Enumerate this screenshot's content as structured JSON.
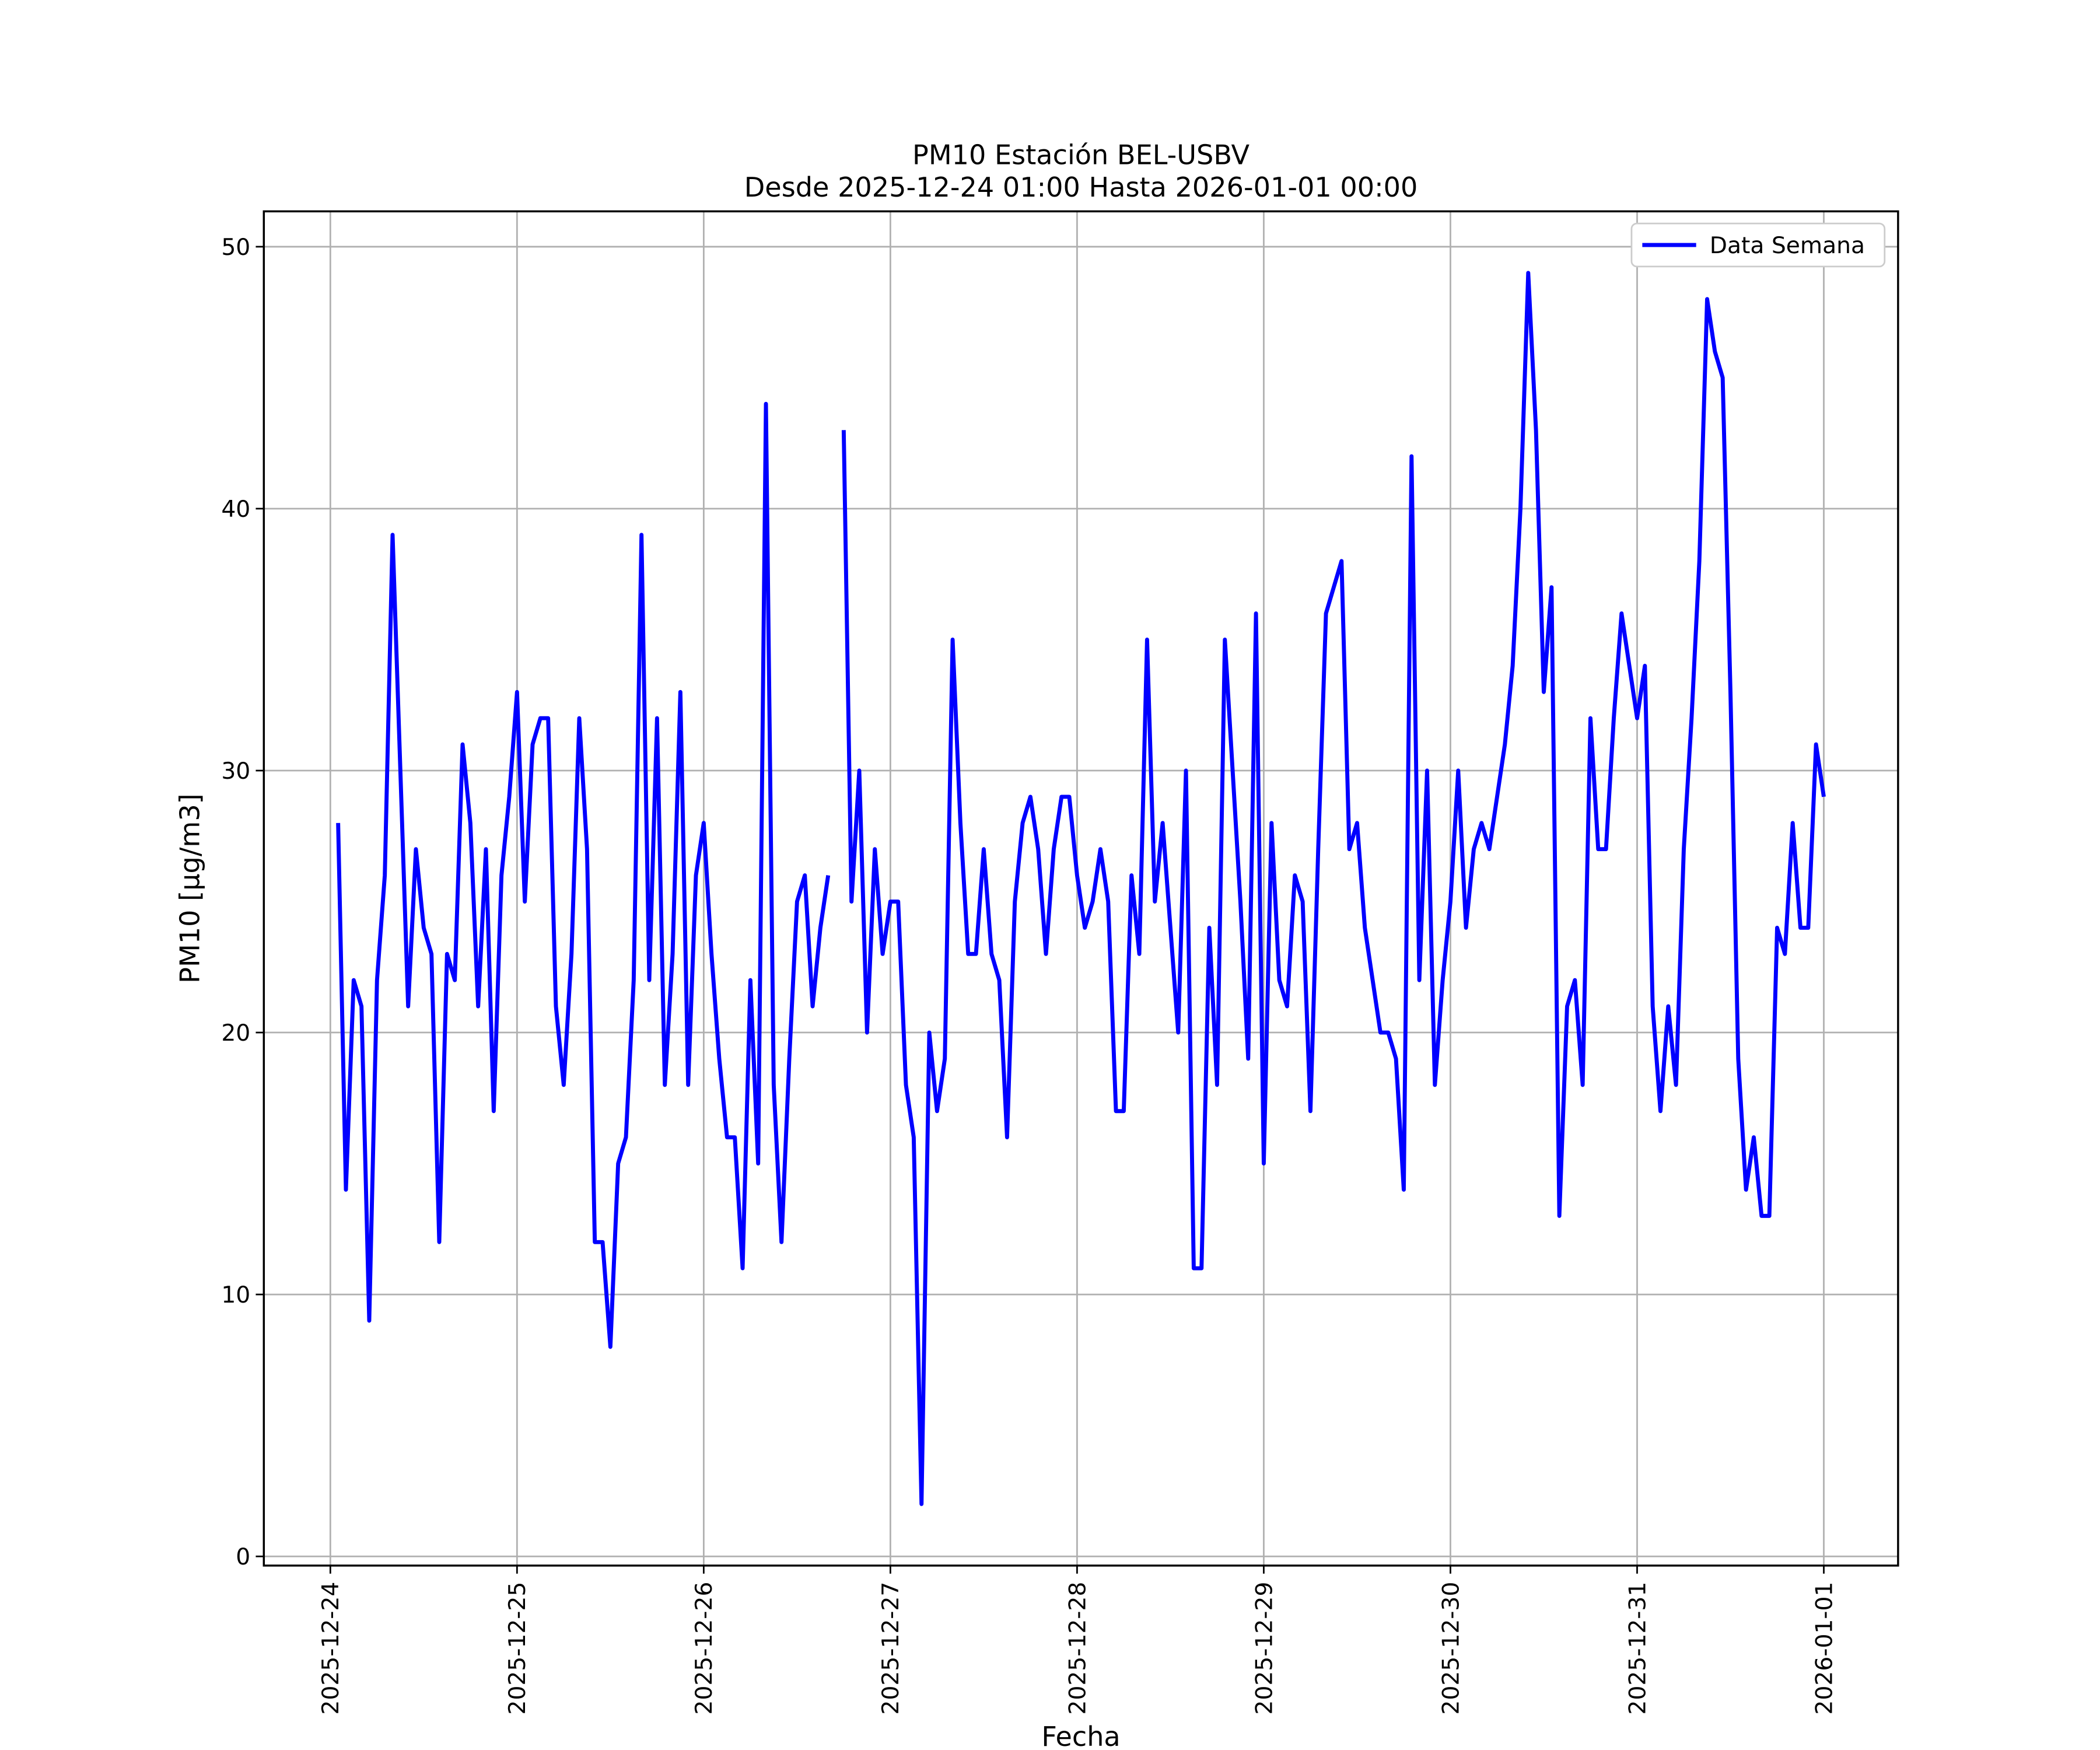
{
  "chart_data": {
    "type": "line",
    "title": "PM10 Estación BEL-USBV",
    "subtitle": "Desde 2025-12-24 01:00 Hasta 2026-01-01 00:00",
    "x_label": "Fecha",
    "y_label": "PM10 [μg/m3]",
    "x": [
      "2025-12-24 01:00",
      "2025-12-24 02:00",
      "2025-12-24 03:00",
      "2025-12-24 04:00",
      "2025-12-24 05:00",
      "2025-12-24 06:00",
      "2025-12-24 07:00",
      "2025-12-24 08:00",
      "2025-12-24 09:00",
      "2025-12-24 10:00",
      "2025-12-24 11:00",
      "2025-12-24 12:00",
      "2025-12-24 13:00",
      "2025-12-24 14:00",
      "2025-12-24 15:00",
      "2025-12-24 16:00",
      "2025-12-24 17:00",
      "2025-12-24 18:00",
      "2025-12-24 19:00",
      "2025-12-24 20:00",
      "2025-12-24 21:00",
      "2025-12-24 22:00",
      "2025-12-24 23:00",
      "2025-12-25 00:00",
      "2025-12-25 01:00",
      "2025-12-25 02:00",
      "2025-12-25 03:00",
      "2025-12-25 04:00",
      "2025-12-25 05:00",
      "2025-12-25 06:00",
      "2025-12-25 07:00",
      "2025-12-25 08:00",
      "2025-12-25 09:00",
      "2025-12-25 10:00",
      "2025-12-25 11:00",
      "2025-12-25 12:00",
      "2025-12-25 13:00",
      "2025-12-25 14:00",
      "2025-12-25 15:00",
      "2025-12-25 16:00",
      "2025-12-25 17:00",
      "2025-12-25 18:00",
      "2025-12-25 19:00",
      "2025-12-25 20:00",
      "2025-12-25 21:00",
      "2025-12-25 22:00",
      "2025-12-25 23:00",
      "2025-12-26 00:00",
      "2025-12-26 01:00",
      "2025-12-26 02:00",
      "2025-12-26 03:00",
      "2025-12-26 04:00",
      "2025-12-26 05:00",
      "2025-12-26 06:00",
      "2025-12-26 07:00",
      "2025-12-26 08:00",
      "2025-12-26 09:00",
      "2025-12-26 10:00",
      "2025-12-26 11:00",
      "2025-12-26 12:00",
      "2025-12-26 13:00",
      "2025-12-26 14:00",
      "2025-12-26 15:00",
      "2025-12-26 16:00",
      "2025-12-26 17:00",
      "2025-12-26 18:00",
      "2025-12-26 19:00",
      "2025-12-26 20:00",
      "2025-12-26 21:00",
      "2025-12-26 22:00",
      "2025-12-26 23:00",
      "2025-12-27 00:00",
      "2025-12-27 01:00",
      "2025-12-27 02:00",
      "2025-12-27 03:00",
      "2025-12-27 04:00",
      "2025-12-27 05:00",
      "2025-12-27 06:00",
      "2025-12-27 07:00",
      "2025-12-27 08:00",
      "2025-12-27 09:00",
      "2025-12-27 10:00",
      "2025-12-27 11:00",
      "2025-12-27 12:00",
      "2025-12-27 13:00",
      "2025-12-27 14:00",
      "2025-12-27 15:00",
      "2025-12-27 16:00",
      "2025-12-27 17:00",
      "2025-12-27 18:00",
      "2025-12-27 19:00",
      "2025-12-27 20:00",
      "2025-12-27 21:00",
      "2025-12-27 22:00",
      "2025-12-27 23:00",
      "2025-12-28 00:00",
      "2025-12-28 01:00",
      "2025-12-28 02:00",
      "2025-12-28 03:00",
      "2025-12-28 04:00",
      "2025-12-28 05:00",
      "2025-12-28 06:00",
      "2025-12-28 07:00",
      "2025-12-28 08:00",
      "2025-12-28 09:00",
      "2025-12-28 10:00",
      "2025-12-28 11:00",
      "2025-12-28 12:00",
      "2025-12-28 13:00",
      "2025-12-28 14:00",
      "2025-12-28 15:00",
      "2025-12-28 16:00",
      "2025-12-28 17:00",
      "2025-12-28 18:00",
      "2025-12-28 19:00",
      "2025-12-28 20:00",
      "2025-12-28 21:00",
      "2025-12-28 22:00",
      "2025-12-28 23:00",
      "2025-12-29 00:00",
      "2025-12-29 01:00",
      "2025-12-29 02:00",
      "2025-12-29 03:00",
      "2025-12-29 04:00",
      "2025-12-29 05:00",
      "2025-12-29 06:00",
      "2025-12-29 07:00",
      "2025-12-29 08:00",
      "2025-12-29 09:00",
      "2025-12-29 10:00",
      "2025-12-29 11:00",
      "2025-12-29 12:00",
      "2025-12-29 13:00",
      "2025-12-29 14:00",
      "2025-12-29 15:00",
      "2025-12-29 16:00",
      "2025-12-29 17:00",
      "2025-12-29 18:00",
      "2025-12-29 19:00",
      "2025-12-29 20:00",
      "2025-12-29 21:00",
      "2025-12-29 22:00",
      "2025-12-29 23:00",
      "2025-12-30 00:00",
      "2025-12-30 01:00",
      "2025-12-30 02:00",
      "2025-12-30 03:00",
      "2025-12-30 04:00",
      "2025-12-30 05:00",
      "2025-12-30 06:00",
      "2025-12-30 07:00",
      "2025-12-30 08:00",
      "2025-12-30 09:00",
      "2025-12-30 10:00",
      "2025-12-30 11:00",
      "2025-12-30 12:00",
      "2025-12-30 13:00",
      "2025-12-30 14:00",
      "2025-12-30 15:00",
      "2025-12-30 16:00",
      "2025-12-30 17:00",
      "2025-12-30 18:00",
      "2025-12-30 19:00",
      "2025-12-30 20:00",
      "2025-12-30 21:00",
      "2025-12-30 22:00",
      "2025-12-30 23:00",
      "2025-12-31 00:00",
      "2025-12-31 01:00",
      "2025-12-31 02:00",
      "2025-12-31 03:00",
      "2025-12-31 04:00",
      "2025-12-31 05:00",
      "2025-12-31 06:00",
      "2025-12-31 07:00",
      "2025-12-31 08:00",
      "2025-12-31 09:00",
      "2025-12-31 10:00",
      "2025-12-31 11:00",
      "2025-12-31 12:00",
      "2025-12-31 13:00",
      "2025-12-31 14:00",
      "2025-12-31 15:00",
      "2025-12-31 16:00",
      "2025-12-31 17:00",
      "2025-12-31 18:00",
      "2025-12-31 19:00",
      "2025-12-31 20:00",
      "2025-12-31 21:00",
      "2025-12-31 22:00",
      "2025-12-31 23:00",
      "2026-01-01 00:00"
    ],
    "series": [
      {
        "name": "Data Semana",
        "color": "#0000ff",
        "values": [
          28,
          14,
          22,
          21,
          9,
          22,
          26,
          39,
          30,
          21,
          27,
          24,
          23,
          12,
          23,
          22,
          31,
          28,
          21,
          27,
          17,
          26,
          29,
          33,
          25,
          31,
          32,
          32,
          21,
          18,
          23,
          32,
          27,
          12,
          12,
          8,
          15,
          16,
          22,
          39,
          22,
          32,
          18,
          23,
          33,
          18,
          26,
          28,
          23,
          19,
          16,
          16,
          11,
          22,
          15,
          44,
          18,
          12,
          19,
          25,
          26,
          21,
          24,
          26,
          null,
          43,
          25,
          30,
          20,
          27,
          23,
          25,
          25,
          18,
          16,
          2,
          20,
          17,
          19,
          35,
          28,
          23,
          23,
          27,
          23,
          22,
          16,
          25,
          28,
          29,
          27,
          23,
          27,
          29,
          29,
          26,
          24,
          25,
          27,
          25,
          17,
          17,
          26,
          23,
          35,
          25,
          28,
          24,
          20,
          30,
          11,
          11,
          24,
          18,
          35,
          30,
          25,
          19,
          36,
          15,
          28,
          22,
          21,
          26,
          25,
          17,
          27,
          36,
          37,
          38,
          27,
          28,
          24,
          22,
          20,
          20,
          19,
          14,
          42,
          22,
          30,
          18,
          22,
          25,
          30,
          24,
          27,
          28,
          27,
          29,
          31,
          34,
          40,
          49,
          43,
          33,
          37,
          13,
          21,
          22,
          18,
          32,
          27,
          27,
          32,
          36,
          34,
          32,
          34,
          21,
          17,
          21,
          18,
          27,
          32,
          38,
          48,
          46,
          45,
          33,
          19,
          14,
          16,
          13,
          13,
          24,
          23,
          28,
          24,
          24,
          31,
          29
        ]
      }
    ],
    "xlim": [
      "2025-12-23 15:27",
      "2026-01-01 09:33"
    ],
    "xticks": [
      "2025-12-24",
      "2025-12-25",
      "2025-12-26",
      "2025-12-27",
      "2025-12-28",
      "2025-12-29",
      "2025-12-30",
      "2025-12-31",
      "2026-01-01"
    ],
    "ylim": [
      -0.35,
      51.35
    ],
    "yticks": [
      0,
      10,
      20,
      30,
      40,
      50
    ],
    "grid": true,
    "legend": "upper right"
  }
}
